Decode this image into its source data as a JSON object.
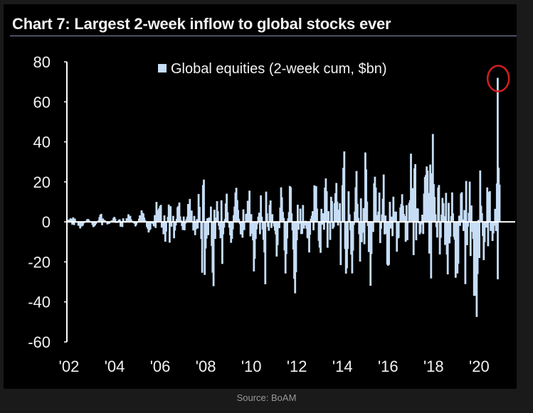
{
  "title": "Chart 7: Largest 2-week inflow to global stocks ever",
  "source": "Source: BoAM",
  "colors": {
    "background": "#000000",
    "series": "#c6ddf5",
    "text": "#f2f2f2",
    "highlight_circle": "#d21f1f"
  },
  "chart_data": {
    "type": "bar",
    "series": [
      {
        "name": "Global equities (2-week cum, $bn)",
        "x_start": 2002.0,
        "x_step": 0.0385,
        "keypoints": [
          [
            2002.0,
            1
          ],
          [
            2002.3,
            3
          ],
          [
            2002.6,
            -4
          ],
          [
            2002.9,
            2
          ],
          [
            2003.2,
            -3
          ],
          [
            2003.5,
            4
          ],
          [
            2003.8,
            -2
          ],
          [
            2004.1,
            3
          ],
          [
            2004.4,
            -5
          ],
          [
            2004.7,
            5
          ],
          [
            2005.0,
            -3
          ],
          [
            2005.3,
            6
          ],
          [
            2005.6,
            -6
          ],
          [
            2005.9,
            8
          ],
          [
            2006.1,
            12
          ],
          [
            2006.3,
            -14
          ],
          [
            2006.5,
            16
          ],
          [
            2006.7,
            -10
          ],
          [
            2006.9,
            12
          ],
          [
            2007.1,
            -8
          ],
          [
            2007.4,
            14
          ],
          [
            2007.6,
            -12
          ],
          [
            2007.8,
            16
          ],
          [
            2008.0,
            -46
          ],
          [
            2008.2,
            14
          ],
          [
            2008.4,
            -35
          ],
          [
            2008.6,
            16
          ],
          [
            2008.8,
            -25
          ],
          [
            2009.0,
            18
          ],
          [
            2009.2,
            -20
          ],
          [
            2009.4,
            20
          ],
          [
            2009.7,
            -15
          ],
          [
            2010.0,
            22
          ],
          [
            2010.2,
            -22
          ],
          [
            2010.5,
            18
          ],
          [
            2010.7,
            -34
          ],
          [
            2010.9,
            20
          ],
          [
            2011.2,
            -18
          ],
          [
            2011.4,
            22
          ],
          [
            2011.6,
            -28
          ],
          [
            2011.8,
            22
          ],
          [
            2012.0,
            -35
          ],
          [
            2012.3,
            20
          ],
          [
            2012.6,
            -18
          ],
          [
            2012.9,
            26
          ],
          [
            2013.1,
            -20
          ],
          [
            2013.4,
            30
          ],
          [
            2013.6,
            -25
          ],
          [
            2013.8,
            32
          ],
          [
            2014.0,
            -38
          ],
          [
            2014.1,
            38
          ],
          [
            2014.3,
            36
          ],
          [
            2014.5,
            -28
          ],
          [
            2014.7,
            28
          ],
          [
            2014.9,
            -30
          ],
          [
            2015.1,
            35
          ],
          [
            2015.3,
            -35
          ],
          [
            2015.5,
            32
          ],
          [
            2015.7,
            -25
          ],
          [
            2015.9,
            28
          ],
          [
            2016.1,
            -38
          ],
          [
            2016.3,
            20
          ],
          [
            2016.5,
            -20
          ],
          [
            2016.7,
            24
          ],
          [
            2016.9,
            -22
          ],
          [
            2017.1,
            34
          ],
          [
            2017.3,
            24
          ],
          [
            2017.5,
            -12
          ],
          [
            2017.7,
            28
          ],
          [
            2017.9,
            22
          ],
          [
            2018.0,
            58
          ],
          [
            2018.1,
            30
          ],
          [
            2018.3,
            -34
          ],
          [
            2018.5,
            20
          ],
          [
            2018.7,
            -44
          ],
          [
            2018.9,
            15
          ],
          [
            2019.1,
            -40
          ],
          [
            2019.3,
            20
          ],
          [
            2019.5,
            -35
          ],
          [
            2019.7,
            28
          ],
          [
            2019.9,
            -46
          ],
          [
            2020.0,
            -42
          ],
          [
            2020.1,
            34
          ],
          [
            2020.3,
            -20
          ],
          [
            2020.5,
            30
          ],
          [
            2020.7,
            -15
          ],
          [
            2020.85,
            20
          ],
          [
            2020.9,
            72
          ],
          [
            2021.0,
            10
          ]
        ]
      }
    ],
    "xlim": [
      2002,
      2021.3
    ],
    "ylim": [
      -60,
      80
    ],
    "xticks": [
      2002,
      2004,
      2006,
      2008,
      2010,
      2012,
      2014,
      2016,
      2018,
      2020
    ],
    "xtick_labels": [
      "'02",
      "'04",
      "'06",
      "'08",
      "'10",
      "'12",
      "'14",
      "'16",
      "'18",
      "'20"
    ],
    "yticks": [
      80,
      60,
      40,
      20,
      0,
      -20,
      -40,
      -60
    ],
    "ytick_labels": [
      "80",
      "60",
      "40",
      "20",
      "0",
      "-20",
      "-40",
      "-60"
    ],
    "xlabel": "",
    "ylabel": "",
    "grid": false,
    "legend_position": "top-center",
    "annotation": {
      "type": "circle",
      "x": 2020.9,
      "y": 72
    }
  }
}
